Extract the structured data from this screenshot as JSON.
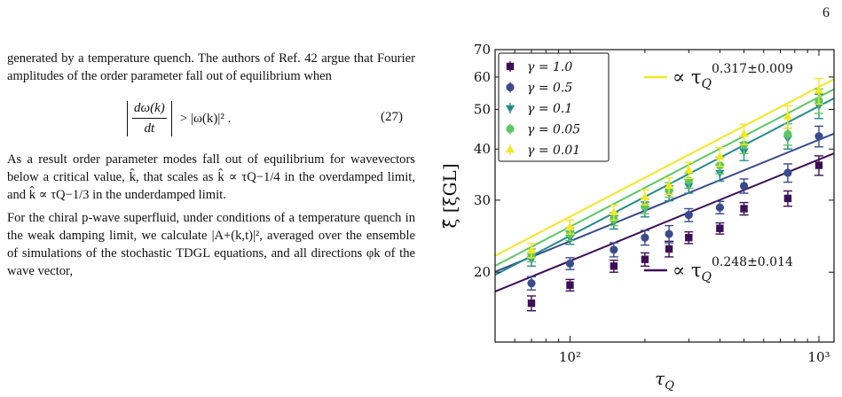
{
  "page": {
    "number": "6"
  },
  "text": {
    "para1": "generated by a temperature quench. The authors of Ref. 42 argue that Fourier amplitudes of the order parameter fall out of equilibrium when",
    "eq_lhs_num": "dω(k)",
    "eq_lhs_den": "dt",
    "eq_rhs": "> |ω(k)|² .",
    "eq_number": "(27)",
    "para2": "As a result order parameter modes fall out of equilibrium for wavevectors below a critical value, k̂, that scales as k̂ ∝ τQ−1/4 in the overdamped limit, and k̂ ∝ τQ−1/3 in the underdamped limit.",
    "para3": "For the chiral p-wave superfluid, under conditions of a temperature quench in the weak damping limit, we calculate |A+(k,t)|², averaged over the ensemble of simulations of the stochastic TDGL equations, and all directions φk of the wave vector,"
  },
  "chart_data": {
    "type": "scatter",
    "xscale": "log",
    "yscale": "log",
    "xlim": [
      50,
      1150
    ],
    "ylim": [
      13.5,
      70
    ],
    "xlabel": "τQ",
    "ylabel": "ξ̂ [ξGL]",
    "xticks": [
      {
        "value": 100,
        "label": "10²"
      },
      {
        "value": 1000,
        "label": "10³"
      }
    ],
    "yticks": [
      {
        "value": 20,
        "label": "20"
      },
      {
        "value": 30,
        "label": "30"
      },
      {
        "value": 40,
        "label": "40"
      },
      {
        "value": 50,
        "label": "50"
      },
      {
        "value": 60,
        "label": "60"
      },
      {
        "value": 70,
        "label": "70"
      }
    ],
    "legend_position": "top-left",
    "series": [
      {
        "name": "γ = 1.0",
        "color": "#3d0f57",
        "marker": "square",
        "x": [
          70,
          100,
          150,
          200,
          250,
          300,
          400,
          500,
          750,
          1000
        ],
        "y": [
          16.8,
          18.6,
          20.7,
          21.5,
          22.8,
          24.3,
          25.6,
          28.6,
          30.3,
          36.5
        ],
        "err": [
          0.7,
          0.6,
          0.7,
          0.8,
          1.0,
          0.8,
          0.8,
          1.0,
          1.3,
          2.0
        ]
      },
      {
        "name": "γ = 0.5",
        "color": "#3a4b8c",
        "marker": "circle",
        "x": [
          70,
          100,
          150,
          200,
          250,
          300,
          400,
          500,
          750,
          1000
        ],
        "y": [
          18.8,
          21.0,
          22.7,
          24.3,
          24.8,
          27.6,
          28.8,
          32.5,
          35.0,
          43.0
        ],
        "err": [
          0.7,
          0.7,
          0.9,
          1.0,
          1.2,
          1.0,
          1.0,
          1.3,
          1.8,
          2.5
        ]
      },
      {
        "name": "γ = 0.1",
        "color": "#228b8a",
        "marker": "triangle-down",
        "x": [
          70,
          100,
          150,
          200,
          250,
          300,
          400,
          500,
          750,
          1000
        ],
        "y": [
          21.5,
          24.3,
          26.5,
          28.5,
          31.2,
          32.5,
          35.0,
          39.5,
          42.5,
          51.0
        ],
        "err": [
          0.8,
          0.9,
          1.0,
          1.2,
          1.3,
          1.3,
          1.6,
          2.0,
          2.5,
          3.5
        ]
      },
      {
        "name": "γ = 0.05",
        "color": "#5cc863",
        "marker": "circle",
        "x": [
          70,
          100,
          150,
          200,
          250,
          300,
          400,
          500,
          750,
          1000
        ],
        "y": [
          22.0,
          24.8,
          27.0,
          29.0,
          31.8,
          33.5,
          36.5,
          41.0,
          43.5,
          52.5
        ],
        "err": [
          0.8,
          0.9,
          1.0,
          1.2,
          1.3,
          1.4,
          1.7,
          2.0,
          2.6,
          3.6
        ]
      },
      {
        "name": "γ = 0.01",
        "color": "#f5e71f",
        "marker": "triangle-up",
        "x": [
          70,
          100,
          150,
          200,
          250,
          300,
          400,
          500,
          750,
          1000
        ],
        "y": [
          22.6,
          25.8,
          28.0,
          30.5,
          32.5,
          35.5,
          38.3,
          43.5,
          48.0,
          55.5
        ],
        "err": [
          0.9,
          1.0,
          1.2,
          1.3,
          1.5,
          1.6,
          2.0,
          2.5,
          3.0,
          4.0
        ]
      }
    ],
    "fits": [
      {
        "color": "#3d0f57",
        "a": 6.8,
        "b": 0.248
      },
      {
        "color": "#3a4b8c",
        "a": 7.6,
        "b": 0.248
      },
      {
        "color": "#228b8a",
        "a": 5.7,
        "b": 0.317
      },
      {
        "color": "#5cc863",
        "a": 6.0,
        "b": 0.317
      },
      {
        "color": "#f5e71f",
        "a": 6.35,
        "b": 0.317
      }
    ],
    "annotations": [
      {
        "text": "∝ τQ0.317±0.009",
        "prefix": "∝ τ",
        "sub": "Q",
        "sup": "0.317±0.009",
        "color": "#f5e71f"
      },
      {
        "text": "∝ τQ0.248±0.014",
        "prefix": "∝ τ",
        "sub": "Q",
        "sup": "0.248±0.014",
        "color": "#3d0f57"
      }
    ]
  }
}
